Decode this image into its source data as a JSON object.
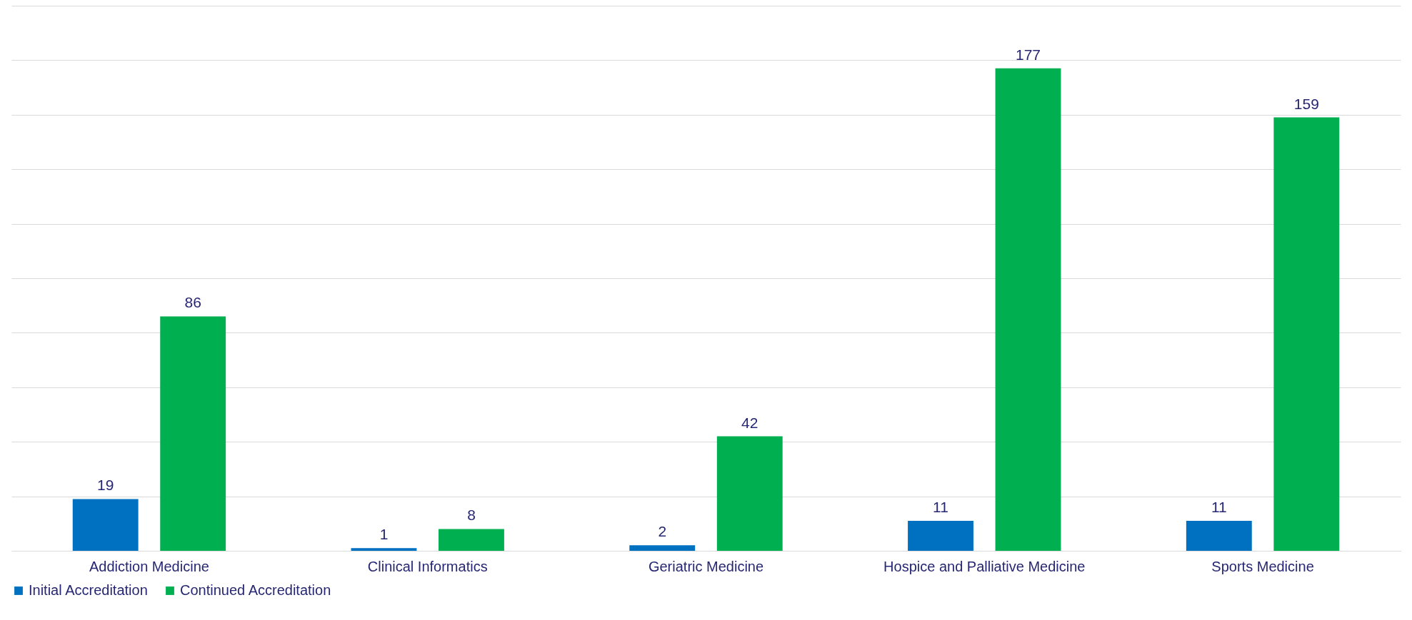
{
  "chart_data": {
    "type": "bar",
    "categories": [
      "Addiction Medicine",
      "Clinical Informatics",
      "Geriatric Medicine",
      "Hospice and Palliative Medicine",
      "Sports Medicine"
    ],
    "series": [
      {
        "name": "Initial Accreditation",
        "color": "#0070c0",
        "values": [
          19,
          1,
          2,
          11,
          11
        ]
      },
      {
        "name": "Continued Accreditation",
        "color": "#00b050",
        "values": [
          86,
          8,
          42,
          177,
          159
        ]
      }
    ],
    "ylim": [
      0,
      200
    ],
    "yticks": [
      {
        "value": 0,
        "label": null
      },
      {
        "value": 20,
        "label": null
      },
      {
        "value": 40,
        "label": null
      },
      {
        "value": 60,
        "label": null
      },
      {
        "value": 80,
        "label": null
      },
      {
        "value": 100,
        "label": null
      },
      {
        "value": 120,
        "label": null
      },
      {
        "value": 140,
        "label": null
      },
      {
        "value": 160,
        "label": null
      },
      {
        "value": 180,
        "label": null
      },
      {
        "value": 200,
        "label": null
      }
    ],
    "tick_labels": "x",
    "grid": "y",
    "legend": "bottom",
    "data_labels": true
  }
}
